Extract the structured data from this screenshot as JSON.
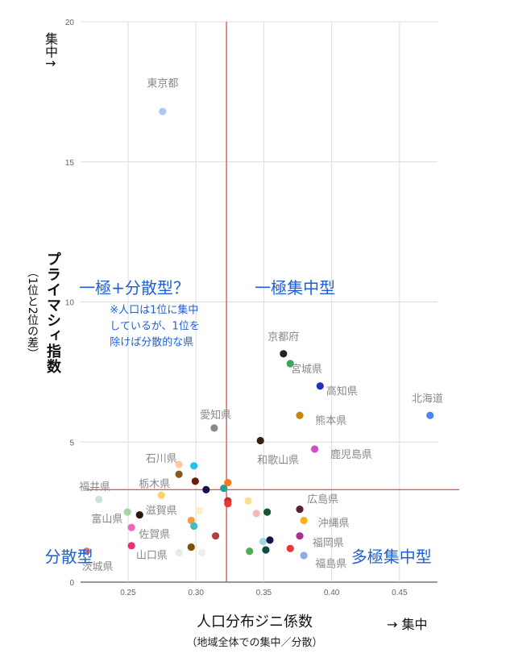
{
  "chart_data": {
    "type": "scatter",
    "title": "",
    "xlabel": "人口分布ジニ係数",
    "xlabel_sub": "（地域全体での集中／分散）",
    "x_arrow_label": "→ 集中",
    "ylabel": "プライマシィ指数",
    "ylabel_sub": "（1位と2位の差）",
    "y_arrow_label": "集中↑",
    "xlim": [
      0.215,
      0.478
    ],
    "ylim": [
      0,
      20
    ],
    "xticks": [
      {
        "value": 0.25,
        "label": "0.25"
      },
      {
        "value": 0.3,
        "label": "0.30"
      },
      {
        "value": 0.35,
        "label": "0.35"
      },
      {
        "value": 0.4,
        "label": "0.40"
      },
      {
        "value": 0.45,
        "label": "0.45"
      }
    ],
    "yticks": [
      {
        "value": 0,
        "label": "0"
      },
      {
        "value": 5,
        "label": "5"
      },
      {
        "value": 10,
        "label": "10"
      },
      {
        "value": 15,
        "label": "15"
      },
      {
        "value": 20,
        "label": "20"
      }
    ],
    "grid": true,
    "reference_lines": {
      "x": 0.3225,
      "y": 3.3,
      "color": "#e53935"
    },
    "quadrant_labels": [
      {
        "text": "一極+分散型？",
        "x": 0.2545,
        "y": 10.5
      },
      {
        "text": "一極集中型",
        "x": 0.373,
        "y": 10.5
      },
      {
        "text": "分散型",
        "x": 0.2065,
        "y": 0.9
      },
      {
        "text": "多極集中型",
        "x": 0.444,
        "y": 0.9
      }
    ],
    "annotation": {
      "lines": [
        "※人口は1位に集中",
        "しているが、1位を",
        "除けば分散的な県"
      ],
      "x": 0.2365,
      "y": 9.6
    },
    "points": [
      {
        "name": "東京都",
        "label": "東京都",
        "x": 0.2755,
        "y": 16.8,
        "color": "#aec7f4",
        "lx": 0.2755,
        "ly": 17.8,
        "anchor": "middle"
      },
      {
        "name": "北海道",
        "label": "北海道",
        "x": 0.4725,
        "y": 5.95,
        "color": "#4a86f0",
        "lx": 0.4705,
        "ly": 6.55,
        "anchor": "middle"
      },
      {
        "name": "京都府",
        "label": "京都府",
        "x": 0.3645,
        "y": 8.15,
        "color": "#222222",
        "lx": 0.3645,
        "ly": 8.75,
        "anchor": "middle"
      },
      {
        "name": "宮城県",
        "label": "宮城県",
        "x": 0.3695,
        "y": 7.8,
        "color": "#34a853",
        "lx": 0.3815,
        "ly": 7.6,
        "anchor": "middle"
      },
      {
        "name": "高知県",
        "label": "高知県",
        "x": 0.3915,
        "y": 7.0,
        "color": "#2233bb",
        "lx": 0.4075,
        "ly": 6.8,
        "anchor": "middle"
      },
      {
        "name": "熊本県",
        "label": "熊本県",
        "x": 0.3765,
        "y": 5.95,
        "color": "#c8860d",
        "lx": 0.3995,
        "ly": 5.75,
        "anchor": "middle"
      },
      {
        "name": "和歌山県",
        "label": "和歌山県",
        "x": 0.3475,
        "y": 5.05,
        "color": "#3a1e0e",
        "lx": 0.3605,
        "ly": 4.35,
        "anchor": "middle"
      },
      {
        "name": "鹿児島県",
        "label": "鹿児島県",
        "x": 0.3875,
        "y": 4.75,
        "color": "#d052c2",
        "lx": 0.4145,
        "ly": 4.55,
        "anchor": "middle"
      },
      {
        "name": "愛知県",
        "label": "愛知県",
        "x": 0.3135,
        "y": 5.5,
        "color": "#888888",
        "lx": 0.3145,
        "ly": 5.95,
        "anchor": "middle"
      },
      {
        "name": "石川県",
        "label": "石川県",
        "x": 0.2875,
        "y": 4.2,
        "color": "#ffc9a0",
        "lx": 0.2745,
        "ly": 4.4,
        "anchor": "middle"
      },
      {
        "name": "栃木県",
        "label": "栃木県",
        "x": 0.2745,
        "y": 3.1,
        "color": "#f7d26b",
        "lx": 0.2695,
        "ly": 3.5,
        "anchor": "middle"
      },
      {
        "name": "福井県",
        "label": "福井県",
        "x": 0.2285,
        "y": 2.95,
        "color": "#c7e3e0",
        "lx": 0.2255,
        "ly": 3.4,
        "anchor": "middle"
      },
      {
        "name": "滋賀県",
        "label": "滋賀県",
        "x": 0.2585,
        "y": 2.4,
        "color": "#2b1a0a",
        "lx": 0.2745,
        "ly": 2.55,
        "anchor": "middle"
      },
      {
        "name": "富山県",
        "label": "富山県",
        "x": 0.2495,
        "y": 2.5,
        "color": "#a7d6a5",
        "lx": 0.2345,
        "ly": 2.25,
        "anchor": "middle"
      },
      {
        "name": "佐賀県",
        "label": "佐賀県",
        "x": 0.2525,
        "y": 1.95,
        "color": "#ee66bb",
        "lx": 0.2695,
        "ly": 1.7,
        "anchor": "middle"
      },
      {
        "name": "山口県",
        "label": "山口県",
        "x": 0.2525,
        "y": 1.3,
        "color": "#ee2e7a",
        "lx": 0.2675,
        "ly": 0.95,
        "anchor": "middle"
      },
      {
        "name": "茨城県",
        "label": "茨城県",
        "x": 0.2195,
        "y": 1.1,
        "color": "#e57373",
        "lx": 0.2275,
        "ly": 0.55,
        "anchor": "middle"
      },
      {
        "name": "広島県",
        "label": "広島県",
        "x": 0.3765,
        "y": 2.6,
        "color": "#5c1e3a",
        "lx": 0.3935,
        "ly": 2.95,
        "anchor": "middle"
      },
      {
        "name": "沖縄県",
        "label": "沖縄県",
        "x": 0.3795,
        "y": 2.2,
        "color": "#ffb019",
        "lx": 0.4015,
        "ly": 2.1,
        "anchor": "middle"
      },
      {
        "name": "福岡県",
        "label": "福岡県",
        "x": 0.3765,
        "y": 1.65,
        "color": "#a8338a",
        "lx": 0.3975,
        "ly": 1.4,
        "anchor": "middle"
      },
      {
        "name": "福島県",
        "label": "福島県",
        "x": 0.3795,
        "y": 0.95,
        "color": "#8fa8f0",
        "lx": 0.3995,
        "ly": 0.65,
        "anchor": "middle"
      },
      {
        "name": "p1",
        "x": 0.2985,
        "y": 4.15,
        "color": "#24c1e8"
      },
      {
        "name": "p2",
        "x": 0.2875,
        "y": 3.85,
        "color": "#8a5a1a"
      },
      {
        "name": "p3",
        "x": 0.2995,
        "y": 3.6,
        "color": "#6a1e10"
      },
      {
        "name": "p4",
        "x": 0.3075,
        "y": 3.3,
        "color": "#15104a"
      },
      {
        "name": "p5",
        "x": 0.3205,
        "y": 3.35,
        "color": "#21a0a0"
      },
      {
        "name": "p6",
        "x": 0.3235,
        "y": 3.55,
        "color": "#f47c20"
      },
      {
        "name": "p7",
        "x": 0.3235,
        "y": 2.9,
        "color": "#c62828"
      },
      {
        "name": "p8",
        "x": 0.3235,
        "y": 2.8,
        "color": "#e53935"
      },
      {
        "name": "p9",
        "x": 0.3385,
        "y": 2.9,
        "color": "#f9e08a"
      },
      {
        "name": "p10",
        "x": 0.3445,
        "y": 2.45,
        "color": "#f4b8b8"
      },
      {
        "name": "p11",
        "x": 0.3525,
        "y": 2.5,
        "color": "#15572e"
      },
      {
        "name": "p12",
        "x": 0.3025,
        "y": 2.55,
        "color": "#fff1c2"
      },
      {
        "name": "p13",
        "x": 0.2965,
        "y": 2.2,
        "color": "#f59a3e"
      },
      {
        "name": "p14",
        "x": 0.2985,
        "y": 2.0,
        "color": "#4ab8c2"
      },
      {
        "name": "p15",
        "x": 0.3145,
        "y": 1.65,
        "color": "#b3403a"
      },
      {
        "name": "p16",
        "x": 0.2965,
        "y": 1.25,
        "color": "#7a5300"
      },
      {
        "name": "p17",
        "x": 0.2875,
        "y": 1.05,
        "color": "#e4efe4"
      },
      {
        "name": "p18",
        "x": 0.3045,
        "y": 1.05,
        "color": "#ededed"
      },
      {
        "name": "p19",
        "x": 0.3495,
        "y": 1.45,
        "color": "#9fd7e3"
      },
      {
        "name": "p20",
        "x": 0.3545,
        "y": 1.5,
        "color": "#131652"
      },
      {
        "name": "p21",
        "x": 0.3395,
        "y": 1.1,
        "color": "#4caf50"
      },
      {
        "name": "p22",
        "x": 0.3515,
        "y": 1.15,
        "color": "#0d4a44"
      },
      {
        "name": "p23",
        "x": 0.3695,
        "y": 1.2,
        "color": "#e53935"
      }
    ]
  }
}
